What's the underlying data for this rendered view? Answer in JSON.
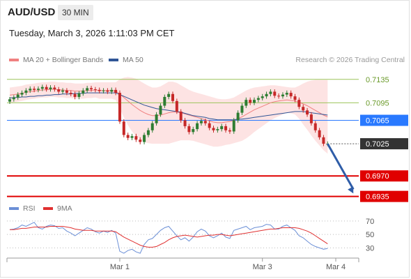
{
  "header": {
    "symbol": "AUD/USD",
    "timeframe": "30 MIN",
    "datetime": "Tuesday, March 3, 2026 1:11:03 PM CET",
    "credit": "Research © 2026 Trading Central"
  },
  "colors": {
    "bollinger_fill": "#fde3e3",
    "ma20": "#f08080",
    "ma50": "#2f5596",
    "bull": "#2e7d32",
    "bear": "#c62828",
    "resistance": "#9bc45a",
    "pivot": "#2979ff",
    "support": "#e00000",
    "last": "#333333",
    "arrow": "#2f5da8",
    "rsi": "#6b8fd6",
    "rsi_ma": "#e03030"
  },
  "chart_data": [
    {
      "type": "candlestick",
      "legend": [
        {
          "name": "MA 20 + Bollinger Bands",
          "color": "#f08080"
        },
        {
          "name": "MA 50",
          "color": "#2f5596"
        }
      ],
      "x_ticks": [
        {
          "label": "Mar 1",
          "index": 27
        },
        {
          "label": "Mar 3",
          "index": 62
        },
        {
          "label": "Mar 4",
          "index": 80
        }
      ],
      "ylim": [
        0.6925,
        0.7155
      ],
      "levels": [
        {
          "label": "0.7135",
          "value": 0.7135,
          "kind": "resistance"
        },
        {
          "label": "0.7095",
          "value": 0.7095,
          "kind": "resistance"
        },
        {
          "label": "0.7065",
          "value": 0.7065,
          "kind": "pivot"
        },
        {
          "label": "0.7025",
          "value": 0.7025,
          "kind": "last"
        },
        {
          "label": "0.6970",
          "value": 0.697,
          "kind": "support"
        },
        {
          "label": "0.6935",
          "value": 0.6935,
          "kind": "support"
        }
      ],
      "projection": {
        "from_index": 78,
        "from_value": 0.7025,
        "to_index": 85,
        "to_value": 0.694
      },
      "closes": [
        0.7101,
        0.7104,
        0.7109,
        0.7112,
        0.7116,
        0.7119,
        0.7117,
        0.7119,
        0.7122,
        0.7118,
        0.7121,
        0.7118,
        0.7114,
        0.7116,
        0.7112,
        0.711,
        0.7105,
        0.7111,
        0.7116,
        0.712,
        0.7118,
        0.7117,
        0.7115,
        0.7116,
        0.7114,
        0.7117,
        0.7112,
        0.7063,
        0.704,
        0.7035,
        0.7038,
        0.7032,
        0.7028,
        0.704,
        0.7048,
        0.706,
        0.7075,
        0.709,
        0.7105,
        0.711,
        0.7098,
        0.708,
        0.7065,
        0.7055,
        0.7045,
        0.705,
        0.706,
        0.7064,
        0.706,
        0.7052,
        0.7048,
        0.705,
        0.7055,
        0.7048,
        0.7046,
        0.7065,
        0.7078,
        0.709,
        0.71,
        0.7095,
        0.71,
        0.7103,
        0.7106,
        0.711,
        0.7114,
        0.7107,
        0.7106,
        0.7109,
        0.7112,
        0.7106,
        0.71,
        0.7088,
        0.7082,
        0.7075,
        0.706,
        0.7048,
        0.7036,
        0.7025,
        0.7025
      ],
      "ma20": [
        0.7108,
        0.7109,
        0.711,
        0.7111,
        0.7113,
        0.7114,
        0.7115,
        0.7116,
        0.7117,
        0.7117,
        0.7118,
        0.7118,
        0.7117,
        0.7117,
        0.7116,
        0.7116,
        0.7115,
        0.7115,
        0.7115,
        0.7116,
        0.7116,
        0.7117,
        0.7116,
        0.7116,
        0.7116,
        0.7116,
        0.7115,
        0.711,
        0.7104,
        0.7098,
        0.7092,
        0.7087,
        0.7082,
        0.7078,
        0.7075,
        0.7073,
        0.7073,
        0.7074,
        0.7076,
        0.7078,
        0.7079,
        0.7079,
        0.7078,
        0.7076,
        0.7074,
        0.7072,
        0.707,
        0.7068,
        0.7066,
        0.7064,
        0.7062,
        0.7061,
        0.7061,
        0.7062,
        0.7063,
        0.7065,
        0.7068,
        0.7071,
        0.7075,
        0.7079,
        0.7083,
        0.7086,
        0.7089,
        0.7092,
        0.7095,
        0.7097,
        0.7098,
        0.7099,
        0.71,
        0.7099,
        0.7098,
        0.7096,
        0.7093,
        0.709,
        0.7086,
        0.7082,
        0.7078,
        0.7074,
        0.7071
      ],
      "bb_upper": [
        0.7121,
        0.7122,
        0.7123,
        0.7124,
        0.7126,
        0.7127,
        0.7128,
        0.7129,
        0.713,
        0.713,
        0.7131,
        0.7131,
        0.713,
        0.713,
        0.7129,
        0.7129,
        0.7128,
        0.7128,
        0.7128,
        0.7129,
        0.7129,
        0.713,
        0.713,
        0.713,
        0.713,
        0.713,
        0.713,
        0.7135,
        0.7138,
        0.7139,
        0.7138,
        0.7136,
        0.7132,
        0.7128,
        0.7124,
        0.7121,
        0.7121,
        0.7123,
        0.7127,
        0.7131,
        0.7131,
        0.7129,
        0.7125,
        0.7121,
        0.7117,
        0.7114,
        0.7112,
        0.711,
        0.7108,
        0.7106,
        0.7104,
        0.7102,
        0.7101,
        0.7101,
        0.7102,
        0.7104,
        0.7108,
        0.7112,
        0.7116,
        0.7119,
        0.7121,
        0.7122,
        0.7123,
        0.7124,
        0.7125,
        0.7125,
        0.7124,
        0.7123,
        0.7122,
        0.7121,
        0.7121,
        0.7124,
        0.7128,
        0.7131,
        0.7133,
        0.7134,
        0.7134,
        0.7134,
        0.7134
      ],
      "bb_lower": [
        0.7095,
        0.7096,
        0.7097,
        0.7098,
        0.71,
        0.7101,
        0.7102,
        0.7103,
        0.7104,
        0.7104,
        0.7105,
        0.7105,
        0.7104,
        0.7104,
        0.7103,
        0.7103,
        0.7102,
        0.7102,
        0.7102,
        0.7103,
        0.7103,
        0.7104,
        0.7102,
        0.7102,
        0.7102,
        0.7102,
        0.71,
        0.7085,
        0.707,
        0.7057,
        0.7046,
        0.7038,
        0.7032,
        0.7028,
        0.7026,
        0.7025,
        0.7025,
        0.7025,
        0.7025,
        0.7025,
        0.7027,
        0.7029,
        0.7031,
        0.7031,
        0.7031,
        0.703,
        0.7028,
        0.7026,
        0.7024,
        0.7022,
        0.702,
        0.702,
        0.7021,
        0.7023,
        0.7024,
        0.7026,
        0.7028,
        0.703,
        0.7034,
        0.7039,
        0.7045,
        0.705,
        0.7055,
        0.706,
        0.7065,
        0.7069,
        0.7072,
        0.7075,
        0.7078,
        0.7077,
        0.7075,
        0.7068,
        0.7058,
        0.7049,
        0.7039,
        0.703,
        0.7022,
        0.7014,
        0.7008
      ],
      "ma50": [
        0.7103,
        0.7104,
        0.7104,
        0.7105,
        0.7105,
        0.7106,
        0.7106,
        0.7107,
        0.7107,
        0.7108,
        0.7108,
        0.7109,
        0.7109,
        0.711,
        0.711,
        0.711,
        0.7111,
        0.7111,
        0.7111,
        0.7112,
        0.7112,
        0.7112,
        0.7112,
        0.7112,
        0.7112,
        0.7112,
        0.7112,
        0.7109,
        0.7106,
        0.7103,
        0.71,
        0.7097,
        0.7094,
        0.7091,
        0.7089,
        0.7087,
        0.7085,
        0.7084,
        0.7083,
        0.7082,
        0.7081,
        0.708,
        0.7079,
        0.7077,
        0.7075,
        0.7073,
        0.7072,
        0.7071,
        0.707,
        0.7068,
        0.7067,
        0.7066,
        0.7066,
        0.7066,
        0.7066,
        0.7066,
        0.7067,
        0.7067,
        0.7068,
        0.7069,
        0.707,
        0.7071,
        0.7072,
        0.7073,
        0.7074,
        0.7075,
        0.7076,
        0.7077,
        0.7078,
        0.7079,
        0.708,
        0.708,
        0.708,
        0.7079,
        0.7078,
        0.7077,
        0.7076,
        0.7075,
        0.7074
      ]
    },
    {
      "type": "line",
      "legend": [
        {
          "name": "RSI",
          "color": "#6b8fd6"
        },
        {
          "name": "9MA",
          "color": "#e03030"
        }
      ],
      "ylim": [
        20,
        75
      ],
      "y_ticks": [
        70,
        50,
        30
      ],
      "rsi": [
        57,
        58,
        60,
        64,
        62,
        65,
        68,
        60,
        58,
        62,
        64,
        63,
        59,
        60,
        55,
        52,
        48,
        52,
        56,
        60,
        58,
        54,
        52,
        55,
        53,
        56,
        52,
        25,
        22,
        26,
        28,
        24,
        22,
        35,
        42,
        44,
        50,
        56,
        60,
        62,
        55,
        48,
        42,
        45,
        40,
        46,
        54,
        58,
        55,
        48,
        45,
        48,
        52,
        46,
        44,
        56,
        58,
        60,
        62,
        57,
        60,
        61,
        62,
        65,
        64,
        58,
        58,
        62,
        64,
        60,
        56,
        48,
        45,
        40,
        35,
        32,
        30,
        28,
        29
      ],
      "rsi_ma": [
        57,
        57,
        58,
        59,
        59,
        60,
        61,
        61,
        61,
        61,
        62,
        62,
        62,
        62,
        61,
        60,
        58,
        57,
        56,
        56,
        56,
        55,
        55,
        55,
        55,
        55,
        54,
        50,
        46,
        43,
        40,
        37,
        34,
        32,
        31,
        31,
        32,
        35,
        38,
        42,
        45,
        47,
        48,
        49,
        48,
        47,
        46,
        47,
        48,
        49,
        49,
        50,
        50,
        49,
        48,
        49,
        50,
        51,
        52,
        53,
        54,
        55,
        56,
        57,
        58,
        58,
        59,
        60,
        60,
        60,
        60,
        59,
        57,
        55,
        52,
        48,
        44,
        40,
        36
      ]
    }
  ]
}
